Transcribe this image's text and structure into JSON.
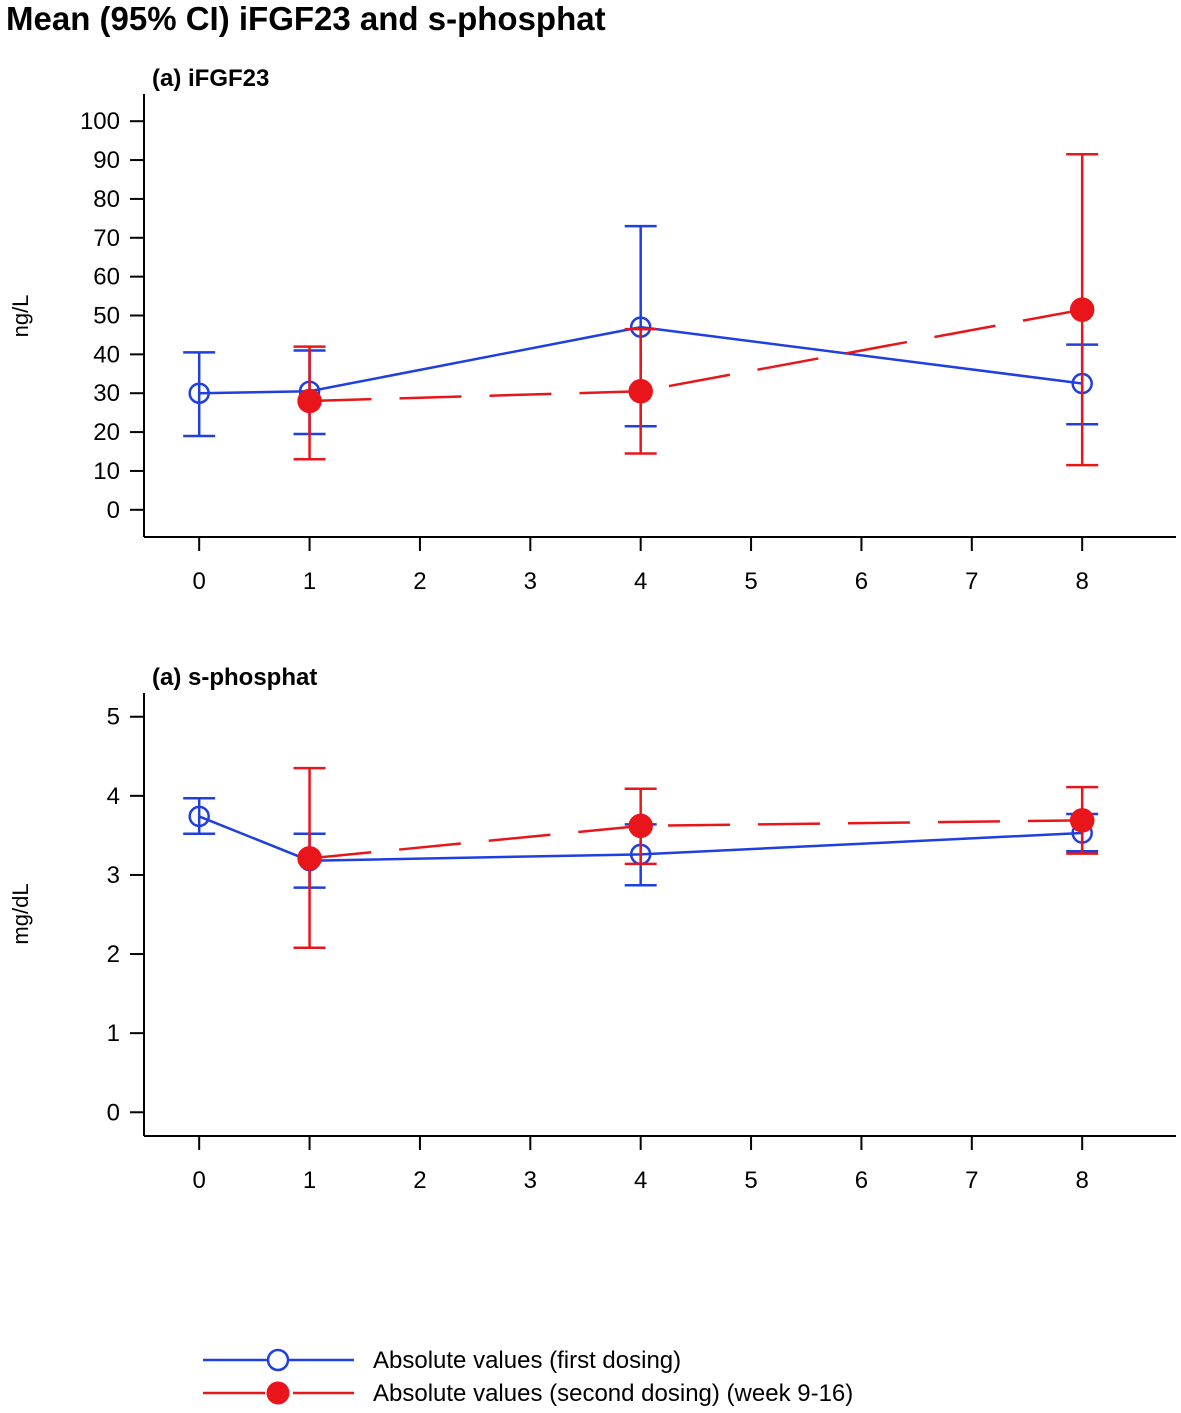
{
  "figure_title": "Mean (95% CI) iFGF23 and s-phosphat",
  "colors": {
    "series1": "#1f3fe0",
    "series2": "#e8161b",
    "axis": "#000000"
  },
  "legend": {
    "placement": "bottom-left",
    "items": [
      {
        "label": "Absolute values (first dosing)",
        "marker": "open-circle",
        "line": "solid"
      },
      {
        "label": "Absolute values (second dosing) (week 9-16)",
        "marker": "filled-circle",
        "line": "dashed"
      }
    ]
  },
  "chart_data": [
    {
      "type": "line",
      "title": "(a) iFGF23",
      "ylabel": "ng/L",
      "xlabel": "",
      "xlim": [
        -0.5,
        8.85
      ],
      "ylim": [
        -7,
        107
      ],
      "x_ticks": [
        0,
        1,
        2,
        3,
        4,
        5,
        6,
        7,
        8
      ],
      "y_ticks": [
        0,
        10,
        20,
        30,
        40,
        50,
        60,
        70,
        80,
        90,
        100
      ],
      "grid": false,
      "series": [
        {
          "name": "Absolute values (first dosing)",
          "x": [
            0,
            1,
            4,
            8
          ],
          "y": [
            30,
            30.5,
            47,
            32.5
          ],
          "lower": [
            19,
            19.5,
            21.5,
            22
          ],
          "upper": [
            40.5,
            41,
            73,
            42.5
          ]
        },
        {
          "name": "Absolute values (second dosing) (week 9-16)",
          "x": [
            1,
            4,
            8
          ],
          "y": [
            28,
            30.5,
            51.5
          ],
          "lower": [
            13,
            14.5,
            11.5
          ],
          "upper": [
            42,
            46.5,
            91.5
          ]
        }
      ]
    },
    {
      "type": "line",
      "title": "(a) s-phosphat",
      "ylabel": "mg/dL",
      "xlabel": "",
      "xlim": [
        -0.5,
        8.85
      ],
      "ylim": [
        -0.3,
        5.3
      ],
      "x_ticks": [
        0,
        1,
        2,
        3,
        4,
        5,
        6,
        7,
        8
      ],
      "y_ticks": [
        0,
        1,
        2,
        3,
        4,
        5
      ],
      "grid": false,
      "series": [
        {
          "name": "Absolute values (first dosing)",
          "x": [
            0,
            1,
            4,
            8
          ],
          "y": [
            3.74,
            3.18,
            3.26,
            3.53
          ],
          "lower": [
            3.52,
            2.84,
            2.87,
            3.3
          ],
          "upper": [
            3.97,
            3.52,
            3.64,
            3.77
          ]
        },
        {
          "name": "Absolute values (second dosing) (week 9-16)",
          "x": [
            1,
            4,
            8
          ],
          "y": [
            3.21,
            3.62,
            3.69
          ],
          "lower": [
            2.08,
            3.14,
            3.27
          ],
          "upper": [
            4.35,
            4.09,
            4.11
          ]
        }
      ]
    }
  ]
}
